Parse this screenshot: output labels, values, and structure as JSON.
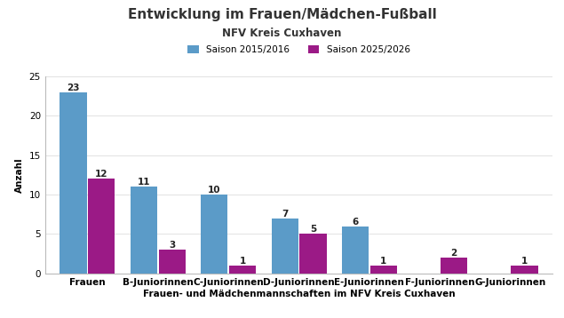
{
  "chart_data": {
    "type": "bar",
    "title": "Entwicklung im Frauen/Mädchen-Fußball",
    "subtitle": "NFV Kreis Cuxhaven",
    "x_label": "Frauen- und Mädchenmannschaften im NFV Kreis Cuxhaven",
    "y_label": "Anzahl",
    "categories": [
      "Frauen",
      "B-Juniorinnen",
      "C-Juniorinnen",
      "D-Juniorinnen",
      "E-Juniorinnen",
      "F-Juniorinnen",
      "G-Juniorinnen"
    ],
    "series": [
      {
        "name": "Saison 2015/2016",
        "color": "#5b9bc8",
        "values": [
          23,
          11,
          10,
          7,
          6,
          null,
          null
        ]
      },
      {
        "name": "Saison 2025/2026",
        "color": "#9b1a86",
        "values": [
          12,
          3,
          1,
          5,
          1,
          2,
          1
        ]
      }
    ],
    "ylim": [
      0,
      25
    ],
    "yticks": [
      0,
      5,
      10,
      15,
      20,
      25
    ],
    "grid": true,
    "legend": "upper center",
    "data_labels": true
  }
}
